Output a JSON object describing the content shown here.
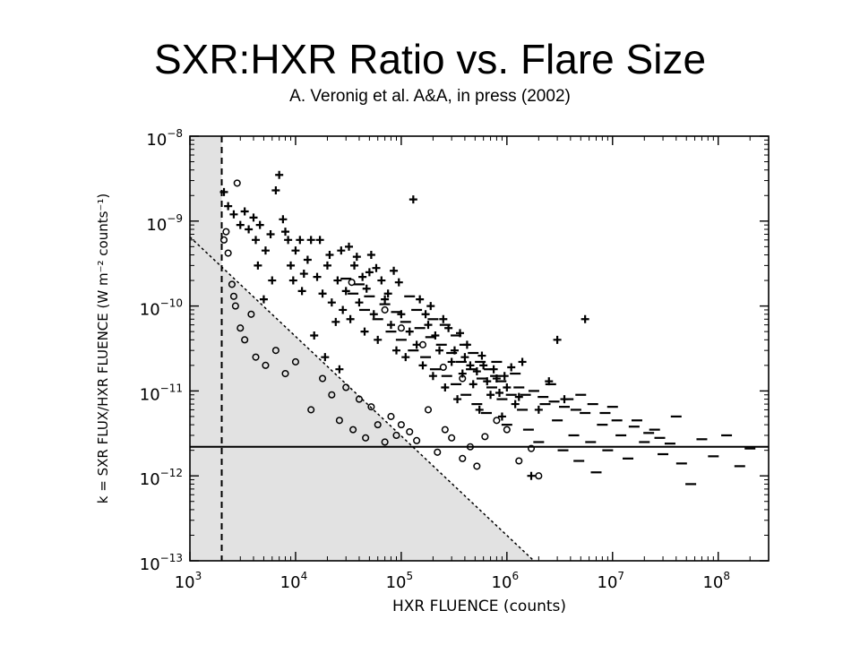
{
  "slide": {
    "title": "SXR:HXR Ratio vs. Flare Size",
    "subtitle": "A. Veronig et al. A&A, in press (2002)"
  },
  "chart_data": {
    "type": "scatter",
    "xlabel": "HXR FLUENCE (counts)",
    "ylabel": "k = SXR FLUX/HXR FLUENCE (W m⁻² counts⁻¹)",
    "x_scale": "log",
    "y_scale": "log",
    "xlim": [
      1000,
      300000000
    ],
    "ylim": [
      1e-13,
      1e-08
    ],
    "x_ticks": [
      {
        "value": 1000,
        "mantissa": "10",
        "exponent": "3"
      },
      {
        "value": 10000,
        "mantissa": "10",
        "exponent": "4"
      },
      {
        "value": 100000,
        "mantissa": "10",
        "exponent": "5"
      },
      {
        "value": 1000000,
        "mantissa": "10",
        "exponent": "6"
      },
      {
        "value": 10000000,
        "mantissa": "10",
        "exponent": "7"
      },
      {
        "value": 100000000,
        "mantissa": "10",
        "exponent": "8"
      }
    ],
    "y_ticks": [
      {
        "value": 1e-08,
        "mantissa": "10",
        "exponent": "−8"
      },
      {
        "value": 1e-09,
        "mantissa": "10",
        "exponent": "−9"
      },
      {
        "value": 1e-10,
        "mantissa": "10",
        "exponent": "−10"
      },
      {
        "value": 1e-11,
        "mantissa": "10",
        "exponent": "−11"
      },
      {
        "value": 1e-12,
        "mantissa": "10",
        "exponent": "−12"
      },
      {
        "value": 1e-13,
        "mantissa": "10",
        "exponent": "−13"
      }
    ],
    "grid": false,
    "threshold_x": 2000,
    "horizontal_line_y": 2.2e-12,
    "detection_limit_line": [
      [
        1000,
        6.5e-10
      ],
      [
        1800000,
        1e-13
      ]
    ],
    "shaded_region": "below detection limit line and left of threshold_x",
    "colors": {
      "points": "#000000",
      "shade": "#e2e2e2",
      "lines": "#000000"
    },
    "series": [
      {
        "marker": "plus",
        "points": [
          [
            2100,
            2.2e-09
          ],
          [
            2300,
            1.5e-09
          ],
          [
            2600,
            1.2e-09
          ],
          [
            3000,
            9e-10
          ],
          [
            3300,
            1.3e-09
          ],
          [
            3600,
            8e-10
          ],
          [
            4000,
            1.1e-09
          ],
          [
            4200,
            6e-10
          ],
          [
            4600,
            9e-10
          ],
          [
            5200,
            4.5e-10
          ],
          [
            5800,
            7e-10
          ],
          [
            6500,
            2.3e-09
          ],
          [
            7000,
            3.5e-09
          ],
          [
            7600,
            1.05e-09
          ],
          [
            8500,
            6e-10
          ],
          [
            9000,
            3e-10
          ],
          [
            10000,
            4.5e-10
          ],
          [
            11000,
            6e-10
          ],
          [
            12000,
            2.4e-10
          ],
          [
            13000,
            3.5e-10
          ],
          [
            14000,
            6e-10
          ],
          [
            16000,
            2.2e-10
          ],
          [
            18000,
            1.4e-10
          ],
          [
            20000,
            3e-10
          ],
          [
            22000,
            1.1e-10
          ],
          [
            25000,
            2e-10
          ],
          [
            28000,
            9e-11
          ],
          [
            30000,
            1.5e-10
          ],
          [
            33000,
            7e-11
          ],
          [
            36000,
            3e-10
          ],
          [
            40000,
            1.1e-10
          ],
          [
            45000,
            5e-11
          ],
          [
            50000,
            2.5e-10
          ],
          [
            55000,
            8e-11
          ],
          [
            60000,
            4e-11
          ],
          [
            70000,
            1.2e-10
          ],
          [
            80000,
            6e-11
          ],
          [
            90000,
            3e-11
          ],
          [
            130000,
            1.8e-09
          ],
          [
            100000,
            8e-11
          ],
          [
            110000,
            2.5e-11
          ],
          [
            120000,
            5e-11
          ],
          [
            140000,
            3.5e-11
          ],
          [
            160000,
            2e-11
          ],
          [
            180000,
            6e-11
          ],
          [
            200000,
            1.5e-11
          ],
          [
            230000,
            3e-11
          ],
          [
            260000,
            1.1e-11
          ],
          [
            300000,
            2.2e-11
          ],
          [
            340000,
            8e-12
          ],
          [
            380000,
            1.6e-11
          ],
          [
            420000,
            3.5e-11
          ],
          [
            480000,
            1.2e-11
          ],
          [
            550000,
            6e-12
          ],
          [
            600000,
            2e-11
          ],
          [
            700000,
            9e-12
          ],
          [
            800000,
            1.4e-11
          ],
          [
            900000,
            5e-12
          ],
          [
            1000000,
            1.1e-11
          ],
          [
            1200000,
            7e-12
          ],
          [
            1400000,
            2.2e-11
          ],
          [
            1700000,
            1e-12
          ],
          [
            2000000,
            6e-12
          ],
          [
            2500000,
            1.3e-11
          ],
          [
            3000000,
            4e-11
          ],
          [
            5500000,
            7e-11
          ],
          [
            3500000,
            8e-12
          ],
          [
            24000,
            6.5e-11
          ],
          [
            26000,
            1.8e-11
          ],
          [
            19000,
            2.5e-11
          ],
          [
            15000,
            4.5e-11
          ],
          [
            11500,
            1.5e-10
          ],
          [
            9500,
            2e-10
          ],
          [
            43000,
            2.2e-10
          ],
          [
            47000,
            1.6e-10
          ],
          [
            65000,
            2e-10
          ],
          [
            75000,
            1.4e-10
          ],
          [
            8000,
            7.5e-10
          ],
          [
            6000,
            2e-10
          ],
          [
            5000,
            1.2e-10
          ],
          [
            4400,
            3e-10
          ],
          [
            17000,
            6e-10
          ],
          [
            21000,
            4e-10
          ],
          [
            27000,
            4.5e-10
          ],
          [
            32000,
            5e-10
          ],
          [
            38000,
            3.8e-10
          ],
          [
            52000,
            4e-10
          ],
          [
            58000,
            2.8e-10
          ],
          [
            85000,
            2.6e-10
          ],
          [
            95000,
            1.9e-10
          ],
          [
            150000,
            1.2e-10
          ],
          [
            170000,
            8e-11
          ],
          [
            190000,
            1e-10
          ],
          [
            210000,
            4.5e-11
          ],
          [
            250000,
            7e-11
          ],
          [
            280000,
            5.5e-11
          ],
          [
            320000,
            3e-11
          ],
          [
            360000,
            4.8e-11
          ],
          [
            400000,
            2.5e-11
          ],
          [
            450000,
            2e-11
          ],
          [
            520000,
            1.7e-11
          ],
          [
            580000,
            2.6e-11
          ],
          [
            650000,
            1.3e-11
          ],
          [
            750000,
            1.8e-11
          ],
          [
            850000,
            9.5e-12
          ],
          [
            950000,
            1.5e-11
          ],
          [
            1100000,
            1.9e-11
          ],
          [
            1300000,
            8.5e-12
          ]
        ]
      },
      {
        "marker": "dash",
        "points": [
          [
            30000,
            2.1e-10
          ],
          [
            35000,
            1.4e-10
          ],
          [
            40000,
            1.8e-10
          ],
          [
            45000,
            9e-11
          ],
          [
            50000,
            1.3e-10
          ],
          [
            60000,
            7e-11
          ],
          [
            70000,
            1.05e-10
          ],
          [
            80000,
            5e-11
          ],
          [
            90000,
            8.5e-11
          ],
          [
            100000,
            4e-11
          ],
          [
            110000,
            6.5e-11
          ],
          [
            120000,
            1.3e-10
          ],
          [
            130000,
            3e-11
          ],
          [
            150000,
            5.5e-11
          ],
          [
            170000,
            2.5e-11
          ],
          [
            190000,
            4.3e-11
          ],
          [
            210000,
            1.8e-11
          ],
          [
            240000,
            3.5e-11
          ],
          [
            270000,
            1.5e-11
          ],
          [
            300000,
            2.8e-11
          ],
          [
            330000,
            1.2e-11
          ],
          [
            370000,
            2.2e-11
          ],
          [
            410000,
            9e-12
          ],
          [
            460000,
            1.8e-11
          ],
          [
            520000,
            7e-12
          ],
          [
            580000,
            1.4e-11
          ],
          [
            640000,
            5.5e-12
          ],
          [
            720000,
            1.1e-11
          ],
          [
            800000,
            2.2e-11
          ],
          [
            900000,
            8e-12
          ],
          [
            1000000,
            4e-12
          ],
          [
            1100000,
            9e-12
          ],
          [
            1200000,
            1.6e-11
          ],
          [
            1400000,
            6e-12
          ],
          [
            1600000,
            3.5e-12
          ],
          [
            1800000,
            1e-11
          ],
          [
            2000000,
            2.5e-12
          ],
          [
            2300000,
            7e-12
          ],
          [
            2600000,
            1.2e-11
          ],
          [
            3000000,
            4.5e-12
          ],
          [
            3400000,
            2e-12
          ],
          [
            3800000,
            8e-12
          ],
          [
            4300000,
            3e-12
          ],
          [
            4800000,
            1.5e-12
          ],
          [
            5500000,
            5.5e-12
          ],
          [
            6200000,
            2.5e-12
          ],
          [
            7000000,
            1.1e-12
          ],
          [
            8000000,
            4e-12
          ],
          [
            9000000,
            2e-12
          ],
          [
            10000000,
            6.5e-12
          ],
          [
            12000000,
            3e-12
          ],
          [
            14000000,
            1.6e-12
          ],
          [
            17000000,
            4.5e-12
          ],
          [
            20000000,
            2.5e-12
          ],
          [
            25000000,
            3.5e-12
          ],
          [
            30000000,
            1.8e-12
          ],
          [
            40000000,
            5e-12
          ],
          [
            55000000,
            8e-13
          ],
          [
            70000000,
            2.7e-12
          ],
          [
            90000000,
            1.7e-12
          ],
          [
            120000000,
            3e-12
          ],
          [
            200000000,
            2.1e-12
          ],
          [
            160000000,
            1.3e-12
          ],
          [
            140000,
            9e-11
          ],
          [
            200000,
            7e-11
          ],
          [
            260000,
            6e-11
          ],
          [
            330000,
            4.5e-11
          ],
          [
            400000,
            3.5e-11
          ],
          [
            480000,
            2.8e-11
          ],
          [
            560000,
            2.2e-11
          ],
          [
            680000,
            1.8e-11
          ],
          [
            780000,
            1.5e-11
          ],
          [
            880000,
            1.3e-11
          ],
          [
            1300000,
            1.1e-11
          ],
          [
            1500000,
            9e-12
          ],
          [
            2200000,
            8.5e-12
          ],
          [
            2800000,
            7.5e-12
          ],
          [
            3500000,
            6.5e-12
          ],
          [
            4500000,
            6e-12
          ],
          [
            5000000,
            9e-12
          ],
          [
            6500000,
            7e-12
          ],
          [
            8500000,
            5.5e-12
          ],
          [
            11000000,
            4.5e-12
          ],
          [
            16000000,
            3.8e-12
          ],
          [
            22000000,
            3.2e-12
          ],
          [
            28000000,
            2.8e-12
          ],
          [
            35000000,
            2.4e-12
          ],
          [
            45000000,
            1.4e-12
          ]
        ]
      },
      {
        "marker": "circle",
        "points": [
          [
            2800,
            2.8e-09
          ],
          [
            2100,
            6e-10
          ],
          [
            2300,
            4.2e-10
          ],
          [
            2500,
            1.8e-10
          ],
          [
            2700,
            1e-10
          ],
          [
            3000,
            5.5e-11
          ],
          [
            3300,
            4e-11
          ],
          [
            2200,
            7.5e-10
          ],
          [
            2600,
            1.3e-10
          ],
          [
            3800,
            8e-11
          ],
          [
            4200,
            2.5e-11
          ],
          [
            5200,
            2e-11
          ],
          [
            6500,
            3e-11
          ],
          [
            8000,
            1.6e-11
          ],
          [
            10000,
            2.2e-11
          ],
          [
            14000,
            6e-12
          ],
          [
            18000,
            1.4e-11
          ],
          [
            22000,
            9e-12
          ],
          [
            26000,
            4.5e-12
          ],
          [
            30000,
            1.1e-11
          ],
          [
            35000,
            3.5e-12
          ],
          [
            40000,
            8e-12
          ],
          [
            46000,
            2.8e-12
          ],
          [
            52000,
            6.5e-12
          ],
          [
            60000,
            4e-12
          ],
          [
            70000,
            2.5e-12
          ],
          [
            80000,
            5e-12
          ],
          [
            90000,
            3e-12
          ],
          [
            100000,
            4e-12
          ],
          [
            120000,
            3.3e-12
          ],
          [
            140000,
            2.6e-12
          ],
          [
            180000,
            6e-12
          ],
          [
            220000,
            1.9e-12
          ],
          [
            260000,
            3.5e-12
          ],
          [
            300000,
            2.8e-12
          ],
          [
            380000,
            1.6e-12
          ],
          [
            450000,
            2.2e-12
          ],
          [
            520000,
            1.3e-12
          ],
          [
            620000,
            2.9e-12
          ],
          [
            800000,
            4.5e-12
          ],
          [
            1000000,
            3.5e-12
          ],
          [
            1300000,
            1.5e-12
          ],
          [
            1700000,
            2.1e-12
          ],
          [
            2000000,
            1e-12
          ],
          [
            34000,
            1.9e-10
          ],
          [
            70000,
            9e-11
          ],
          [
            100000,
            5.5e-11
          ],
          [
            160000,
            3.5e-11
          ],
          [
            250000,
            1.9e-11
          ],
          [
            380000,
            1.4e-11
          ]
        ]
      }
    ]
  }
}
